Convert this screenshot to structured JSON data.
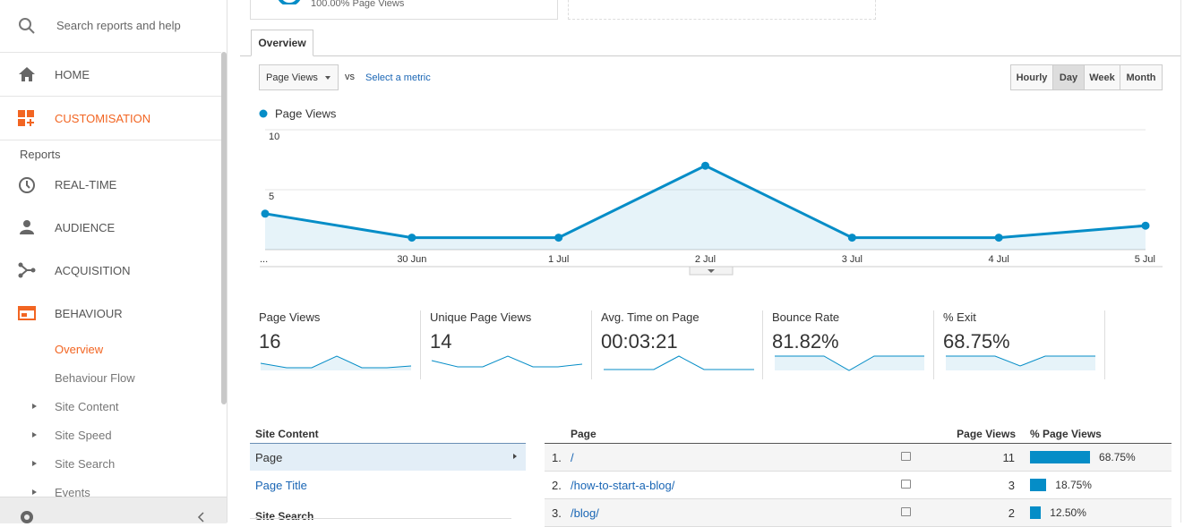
{
  "sidebar": {
    "search": "Search reports and help",
    "home": "HOME",
    "customisation": "CUSTOMISATION",
    "reports_heading": "Reports",
    "reports": [
      "REAL-TIME",
      "AUDIENCE",
      "ACQUISITION",
      "BEHAVIOUR"
    ],
    "behaviour_items": [
      "Overview",
      "Behaviour Flow",
      "Site Content",
      "Site Speed",
      "Site Search",
      "Events"
    ]
  },
  "top_card": "100.00% Page Views",
  "tab": "Overview",
  "metric_select": "Page Views",
  "vs": "vs",
  "select_metric": "Select a metric",
  "intervals": [
    "Hourly",
    "Day",
    "Week",
    "Month"
  ],
  "chart_data": {
    "type": "line",
    "categories": [
      "...",
      "30 Jun",
      "1 Jul",
      "2 Jul",
      "3 Jul",
      "4 Jul",
      "5 Jul"
    ],
    "series": [
      {
        "name": "Page Views",
        "color": "#058dc7",
        "values": [
          3,
          1,
          1,
          7,
          1,
          1,
          2
        ]
      }
    ],
    "ylim": [
      0,
      10
    ],
    "yticks": [
      5,
      10
    ],
    "grid": true
  },
  "scorecards": [
    {
      "label": "Page Views",
      "value": 16
    },
    {
      "label": "Unique Page Views",
      "value": 14
    },
    {
      "label": "Avg. Time on Page",
      "value": "00:03:21"
    },
    {
      "label": "Bounce Rate",
      "value": "81.82%"
    },
    {
      "label": "% Exit",
      "value": "68.75%"
    }
  ],
  "site_content": {
    "title": "Site Content",
    "items": [
      "Page",
      "Page Title"
    ],
    "next_section": "Site Search"
  },
  "table": {
    "headers": [
      "Page",
      "Page Views",
      "% Page Views"
    ],
    "rows": [
      {
        "index": "1.",
        "page": "/",
        "views": 11,
        "percent": 68.75,
        "percent_label": "68.75%"
      },
      {
        "index": "2.",
        "page": "/how-to-start-a-blog/",
        "views": 3,
        "percent": 18.75,
        "percent_label": "18.75%"
      },
      {
        "index": "3.",
        "page": "/blog/",
        "views": 2,
        "percent": 12.5,
        "percent_label": "12.50%"
      }
    ]
  }
}
